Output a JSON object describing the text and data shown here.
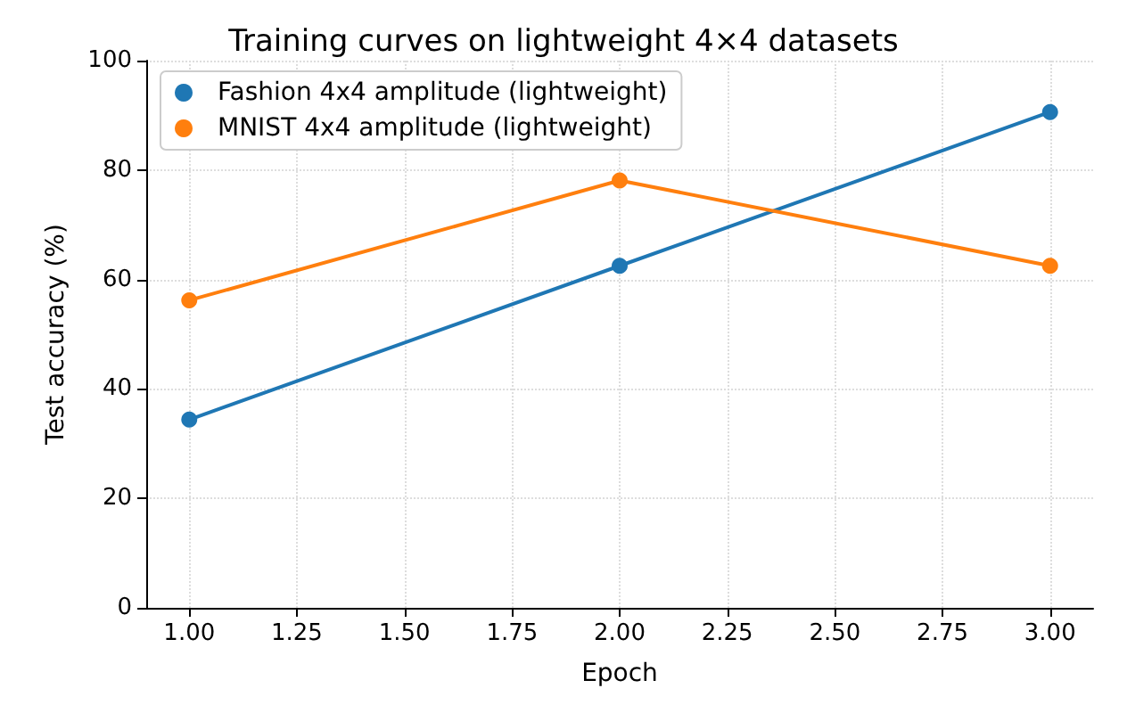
{
  "chart_data": {
    "type": "line",
    "title": "Training curves on lightweight 4×4 datasets",
    "xlabel": "Epoch",
    "ylabel": "Test accuracy (%)",
    "x": [
      1,
      2,
      3
    ],
    "series": [
      {
        "name": "Fashion 4x4 amplitude (lightweight)",
        "color": "#1f77b4",
        "values": [
          34.4,
          62.5,
          90.6
        ]
      },
      {
        "name": "MNIST 4x4 amplitude (lightweight)",
        "color": "#ff7f0e",
        "values": [
          56.2,
          78.1,
          62.5
        ]
      }
    ],
    "xlim": [
      0.9,
      3.1
    ],
    "xticks": [
      {
        "value": 1,
        "label": "1.00"
      },
      {
        "value": 1.25,
        "label": "1.25"
      },
      {
        "value": 1.5,
        "label": "1.50"
      },
      {
        "value": 1.75,
        "label": "1.75"
      },
      {
        "value": 2,
        "label": "2.00"
      },
      {
        "value": 2.25,
        "label": "2.25"
      },
      {
        "value": 2.5,
        "label": "2.50"
      },
      {
        "value": 2.75,
        "label": "2.75"
      },
      {
        "value": 3,
        "label": "3.00"
      }
    ],
    "ylim": [
      0,
      100
    ],
    "yticks": [
      0,
      20,
      40,
      60,
      80,
      100
    ],
    "grid": true,
    "legend": "top left",
    "marker": "circle",
    "line_style": "solid"
  }
}
